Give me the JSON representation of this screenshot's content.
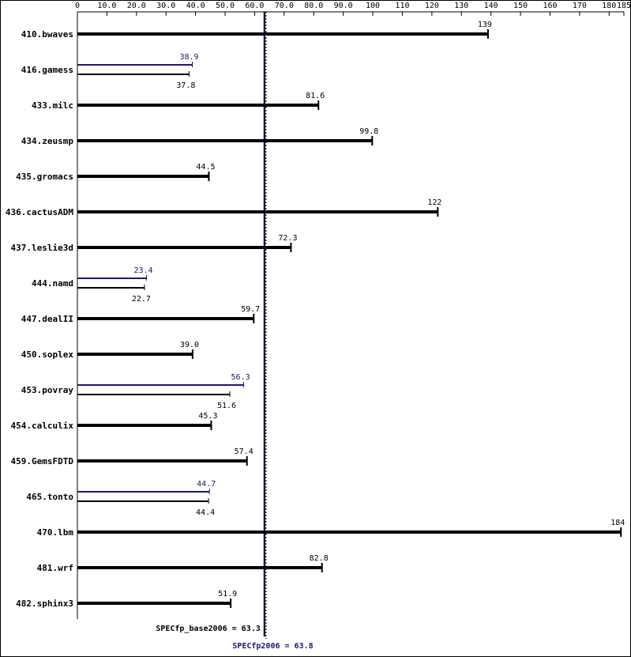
{
  "chart_data": {
    "type": "bar",
    "orientation": "horizontal",
    "categories": [
      "410.bwaves",
      "416.gamess",
      "433.milc",
      "434.zeusmp",
      "435.gromacs",
      "436.cactusADM",
      "437.leslie3d",
      "444.namd",
      "447.dealII",
      "450.soplex",
      "453.povray",
      "454.calculix",
      "459.GemsFDTD",
      "465.tonto",
      "470.lbm",
      "481.wrf",
      "482.sphinx3"
    ],
    "series": [
      {
        "color": "#000000",
        "values": [
          139,
          37.8,
          81.6,
          99.8,
          44.5,
          122,
          72.3,
          22.7,
          59.7,
          39.0,
          51.6,
          45.3,
          57.4,
          44.4,
          184,
          82.8,
          51.9
        ],
        "value_labels": [
          "139",
          "37.8",
          "81.6",
          "99.8",
          "44.5",
          "122",
          "72.3",
          "22.7",
          "59.7",
          "39.0",
          "51.6",
          "45.3",
          "57.4",
          "44.4",
          "184",
          "82.8",
          "51.9"
        ]
      },
      {
        "color": "#191970",
        "values": [
          null,
          38.9,
          null,
          null,
          null,
          null,
          null,
          23.4,
          null,
          null,
          56.3,
          null,
          null,
          44.7,
          null,
          null,
          null
        ]
      }
    ],
    "xlim": [
      0,
      185
    ],
    "xticks": [
      0,
      {
        "value": 10,
        "label": "10.0"
      },
      {
        "value": 20,
        "label": "20.0"
      },
      {
        "value": 30,
        "label": "30.0"
      },
      {
        "value": 40,
        "label": "40.0"
      },
      {
        "value": 50,
        "label": "50.0"
      },
      {
        "value": 60,
        "label": "60.0"
      },
      {
        "value": 70,
        "label": "70.0"
      },
      {
        "value": 80,
        "label": "80.0"
      },
      {
        "value": 90,
        "label": "90.0"
      },
      100,
      110,
      120,
      130,
      140,
      150,
      160,
      170,
      180,
      185
    ],
    "reference_lines": [
      {
        "value": 63.3,
        "label": "SPECfp_base2006 = 63.3",
        "color": "#000000"
      },
      {
        "value": 63.8,
        "label": "SPECfp2006 = 63.8",
        "color": "#191970"
      }
    ]
  }
}
